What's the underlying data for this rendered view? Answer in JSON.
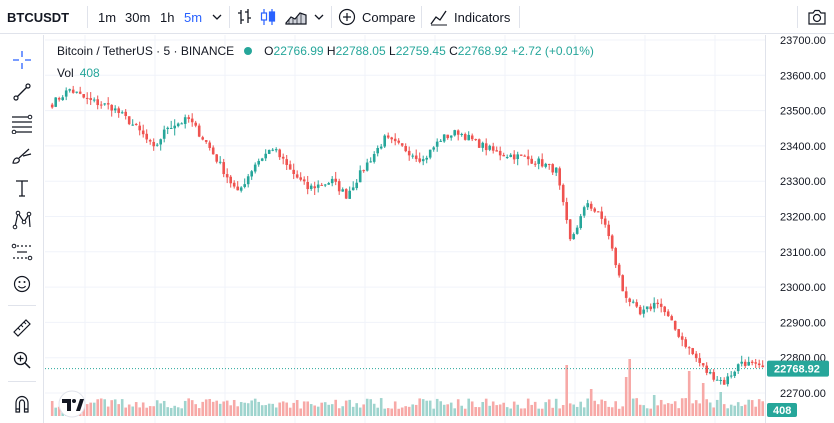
{
  "toolbar": {
    "symbol": "BTCUSDT",
    "timeframes": [
      "1m",
      "30m",
      "1h",
      "5m"
    ],
    "active_timeframe": "5m",
    "compare_label": "Compare",
    "indicators_label": "Indicators"
  },
  "legend": {
    "title": "Bitcoin / TetherUS · 5 · BINANCE",
    "open_label": "O",
    "open": "22766.99",
    "high_label": "H",
    "high": "22788.05",
    "low_label": "L",
    "low": "22759.45",
    "close_label": "C",
    "close": "22768.92",
    "change": "+2.72 (+0.01%)",
    "volume_label": "Vol",
    "volume": "408"
  },
  "price_scale": {
    "ticks": [
      "23700.00",
      "23600.00",
      "23500.00",
      "23400.00",
      "23300.00",
      "23200.00",
      "23100.00",
      "23000.00",
      "22900.00",
      "22800.00",
      "22700.00"
    ],
    "last_price": "22768.92",
    "volume_badge": "408"
  },
  "colors": {
    "up": "#26a69a",
    "down": "#ef5350",
    "up_volume": "#9fd4ce",
    "down_volume": "#f7a9a7",
    "accent": "#2962ff"
  },
  "sidebar_tools": [
    "crosshair-icon",
    "trend-line-icon",
    "fib-retracement-icon",
    "brush-icon",
    "text-icon",
    "pattern-icon",
    "prediction-icon",
    "emoji-icon",
    "ruler-icon",
    "zoom-in-icon",
    "magnet-icon"
  ],
  "chart_data": {
    "type": "candlestick",
    "ylim": [
      22650,
      23720
    ],
    "anchors": [
      [
        0,
        23520
      ],
      [
        5,
        23560
      ],
      [
        10,
        23530
      ],
      [
        17,
        23510
      ],
      [
        22,
        23470
      ],
      [
        26,
        23430
      ],
      [
        29,
        23390
      ],
      [
        33,
        23455
      ],
      [
        39,
        23475
      ],
      [
        44,
        23410
      ],
      [
        49,
        23330
      ],
      [
        53,
        23265
      ],
      [
        58,
        23350
      ],
      [
        63,
        23395
      ],
      [
        68,
        23330
      ],
      [
        73,
        23280
      ],
      [
        80,
        23300
      ],
      [
        84,
        23260
      ],
      [
        90,
        23350
      ],
      [
        95,
        23420
      ],
      [
        101,
        23390
      ],
      [
        106,
        23360
      ],
      [
        111,
        23420
      ],
      [
        116,
        23440
      ],
      [
        121,
        23410
      ],
      [
        127,
        23380
      ],
      [
        133,
        23370
      ],
      [
        139,
        23355
      ],
      [
        144,
        23330
      ],
      [
        148,
        23130
      ],
      [
        153,
        23240
      ],
      [
        158,
        23180
      ],
      [
        163,
        22990
      ],
      [
        168,
        22920
      ],
      [
        173,
        22960
      ],
      [
        178,
        22880
      ],
      [
        183,
        22810
      ],
      [
        187,
        22760
      ],
      [
        192,
        22730
      ],
      [
        197,
        22790
      ],
      [
        202,
        22770
      ],
      [
        205,
        22768
      ]
    ],
    "volume_spikes": [
      [
        147,
        0.85
      ],
      [
        154,
        0.45
      ],
      [
        164,
        0.65
      ],
      [
        165,
        0.95
      ],
      [
        172,
        0.35
      ],
      [
        182,
        0.75
      ],
      [
        186,
        0.55
      ],
      [
        191,
        0.4
      ]
    ]
  }
}
